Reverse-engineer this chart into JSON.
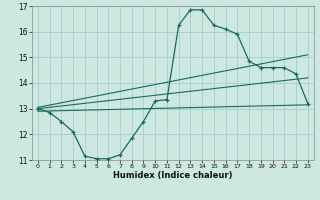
{
  "title": "",
  "xlabel": "Humidex (Indice chaleur)",
  "ylabel": "",
  "background_color": "#cce8e0",
  "grid_color": "#aacccc",
  "line_color": "#1a6b5a",
  "xlim": [
    -0.5,
    23.5
  ],
  "ylim": [
    11,
    17
  ],
  "yticks": [
    11,
    12,
    13,
    14,
    15,
    16,
    17
  ],
  "xticks": [
    0,
    1,
    2,
    3,
    4,
    5,
    6,
    7,
    8,
    9,
    10,
    11,
    12,
    13,
    14,
    15,
    16,
    17,
    18,
    19,
    20,
    21,
    22,
    23
  ],
  "curve1_x": [
    0,
    1,
    2,
    3,
    4,
    5,
    6,
    7,
    8,
    9,
    10,
    11,
    12,
    13,
    14,
    15,
    16,
    17,
    18,
    19,
    20,
    21,
    22,
    23
  ],
  "curve1_y": [
    13.0,
    12.85,
    12.5,
    12.1,
    11.15,
    11.05,
    11.05,
    11.2,
    11.85,
    12.5,
    13.3,
    13.35,
    16.25,
    16.85,
    16.85,
    16.25,
    16.1,
    15.9,
    14.85,
    14.6,
    14.6,
    14.6,
    14.35,
    13.2
  ],
  "curve2_x": [
    0,
    23
  ],
  "curve2_y": [
    12.9,
    13.15
  ],
  "curve3_x": [
    0,
    23
  ],
  "curve3_y": [
    13.0,
    14.2
  ],
  "curve4_x": [
    0,
    23
  ],
  "curve4_y": [
    13.05,
    15.1
  ]
}
